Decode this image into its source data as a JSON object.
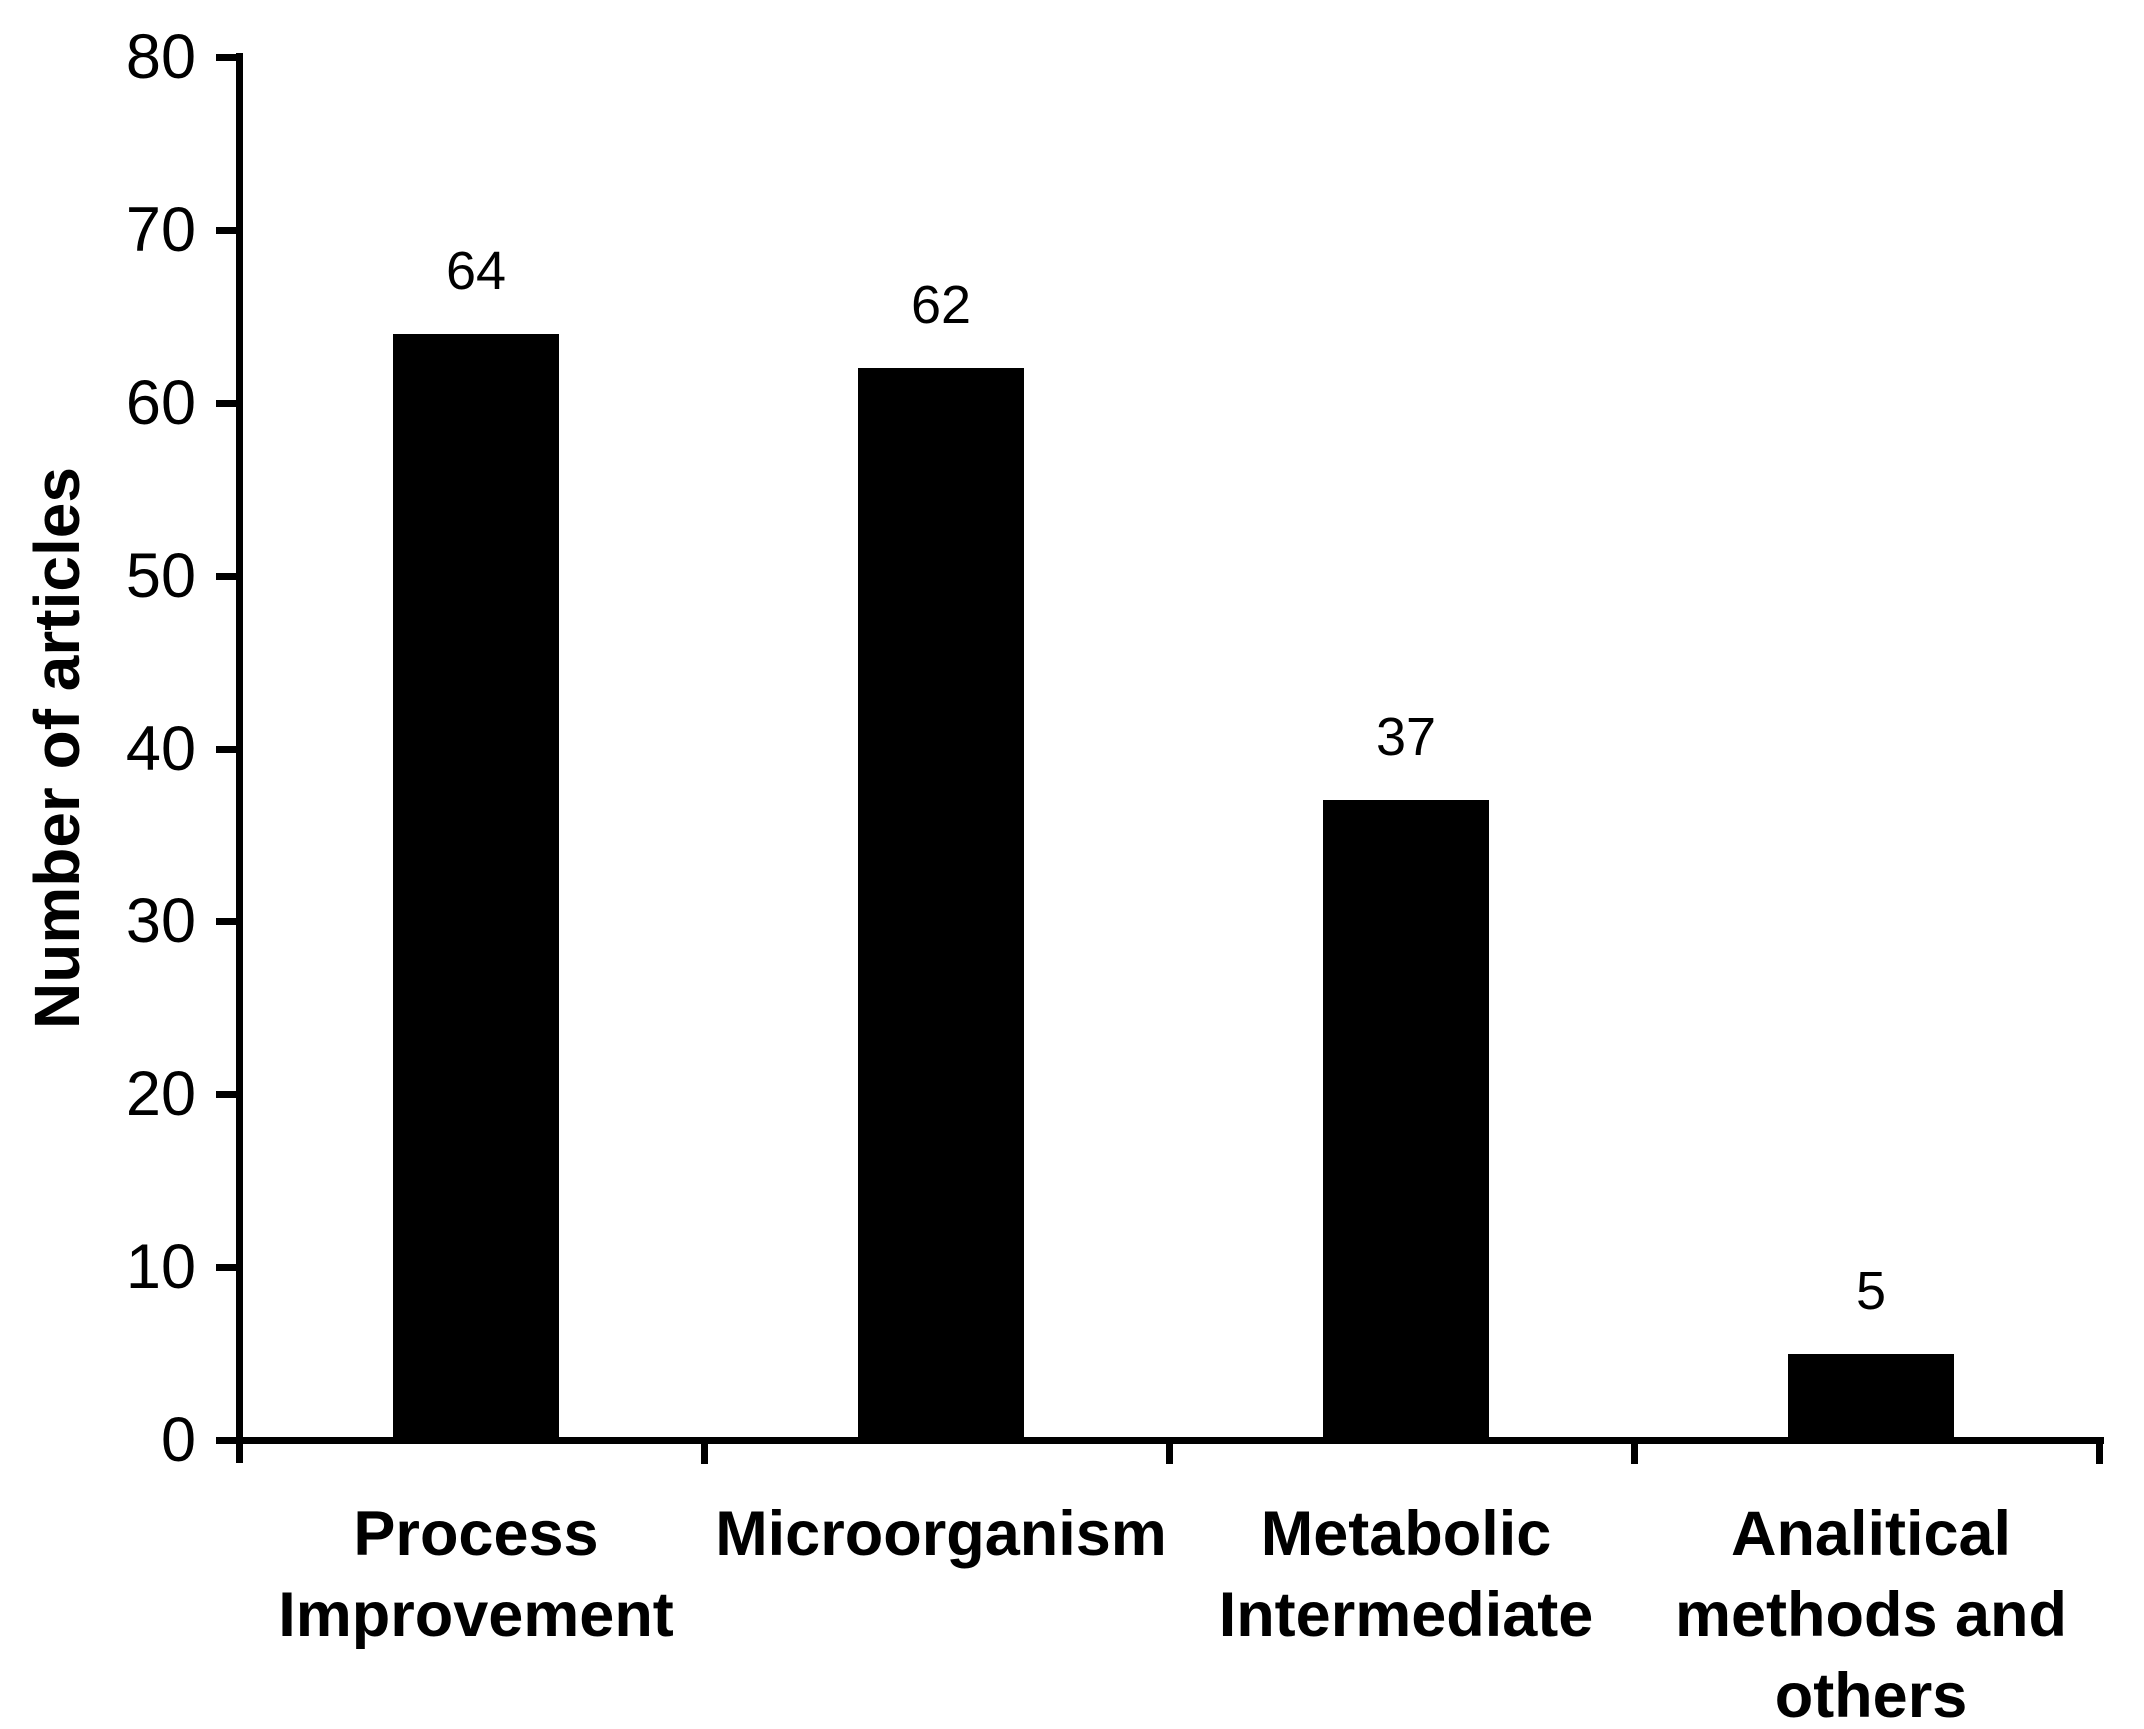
{
  "chart_data": {
    "type": "bar",
    "title": "",
    "ylabel": "Number of articles",
    "xlabel": "",
    "categories": [
      "Process Improvement",
      "Microorganism",
      "Metabolic Intermediate",
      "Analitical methods and others"
    ],
    "values": [
      64,
      62,
      37,
      5
    ],
    "data_labels": [
      "64",
      "62",
      "37",
      "5"
    ],
    "yticks": [
      80,
      70,
      60,
      50,
      40,
      30,
      20,
      10,
      0
    ],
    "ylim": [
      0,
      80
    ],
    "ytick_interval": 10,
    "grid": "off",
    "legend": "none",
    "bar_color": "#000000",
    "axis_color": "#000000",
    "text_color": "#000000",
    "background_color": "#ffffff"
  }
}
